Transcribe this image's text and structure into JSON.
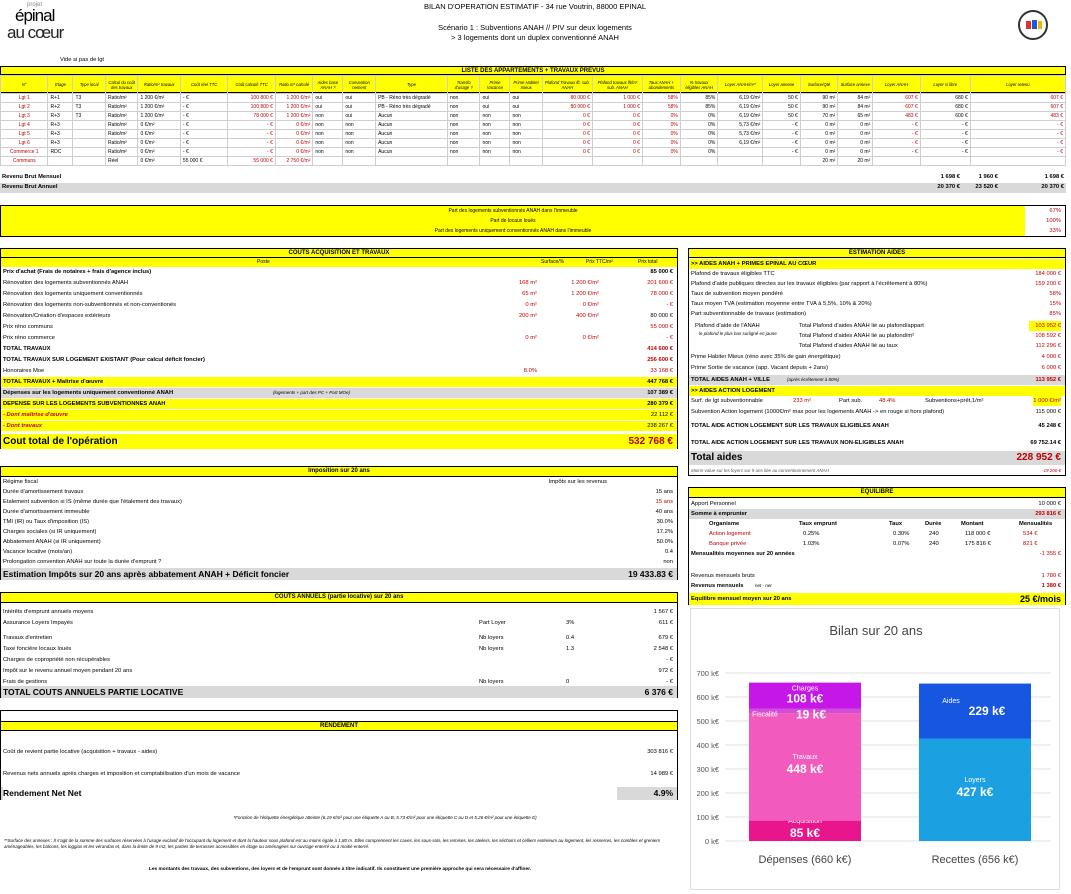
{
  "header": {
    "logo_small": "projet",
    "logo_line1": "épinal",
    "logo_line2": "au cœur",
    "title": "BILAN D'OPERATION ESTIMATIF - 34 rue Voutrin, 88000 EPINAL",
    "scenario": "Scénario 1 : Subventions ANAH // PIV sur deux logements",
    "scenario2": "> 3 logements dont un duplex conventionné ANAH"
  },
  "vide": "Vide si pas de lgt",
  "apt": {
    "title": "LISTE DES APPARTEMENTS + TRAVAUX PREVUS",
    "cols": [
      "N°",
      "Etage",
      "Type local",
      "Calcul du coût des travaux",
      "Ratio/m² travaux",
      "Coût réel TTC",
      "Coût calculé TTC",
      "Ratio m² calculé",
      "Aides base ANAH ?",
      "Convention nement",
      "Type",
      "Transfo d'usage ?",
      "Prime Vacance",
      "Prime Habiter mieux",
      "Plafond Travaux lft. sub. ANAH",
      "Plafond travaux lft/m² sub. ANAH",
      "Taux ANAH + abondements",
      "% travaux éligibles ANAH",
      "Loyer ANAH/m²*",
      "Loyer annexe",
      "Surface/Qté",
      "Surface annexe",
      "Loyer ANAH",
      "Loyer si libre",
      "Loyer retenu"
    ],
    "rows": [
      [
        "Lgt 1",
        "R+1",
        "T3",
        "Ratio/m²",
        "1 200 €/m²",
        "- €",
        "100 800 €",
        "1 200 €/m²",
        "oui",
        "oui",
        "PB - Réno très dégradé",
        "non",
        "oui",
        "oui",
        "80 000 €",
        "1 000 €",
        "58%",
        "85%",
        "6,19 €/m²",
        "50 €",
        "90 m²",
        "84 m²",
        "607 €",
        "680 €",
        "607 €"
      ],
      [
        "Lgt 2",
        "R+2",
        "T3",
        "Ratio/m²",
        "1 200 €/m²",
        "- €",
        "100 800 €",
        "1 200 €/m²",
        "oui",
        "oui",
        "PB - Réno très dégradé",
        "non",
        "oui",
        "oui",
        "80 000 €",
        "1 000 €",
        "58%",
        "85%",
        "6,19 €/m²",
        "50 €",
        "90 m²",
        "84 m²",
        "607 €",
        "680 €",
        "607 €"
      ],
      [
        "Lgt 3",
        "R+3",
        "T3",
        "Ratio/m²",
        "1 200 €/m²",
        "- €",
        "78 000 €",
        "1 200 €/m²",
        "non",
        "oui",
        "Aucun",
        "non",
        "non",
        "non",
        "0 €",
        "0 €",
        "0%",
        "0%",
        "6,19 €/m²",
        "50 €",
        "70 m²",
        "65 m²",
        "483 €",
        "600 €",
        "483 €"
      ],
      [
        "Lgt 4",
        "R+3",
        "",
        "Ratio/m²",
        "0 €/m²",
        "- €",
        "- €",
        "0 €/m²",
        "non",
        "non",
        "Aucun",
        "non",
        "non",
        "non",
        "0 €",
        "0 €",
        "0%",
        "0%",
        "5,73 €/m²",
        "- €",
        "0 m²",
        "0 m²",
        "- €",
        "- €",
        "- €"
      ],
      [
        "Lgt 5",
        "R+3",
        "",
        "Ratio/m²",
        "0 €/m²",
        "- €",
        "- €",
        "0 €/m²",
        "non",
        "non",
        "Aucun",
        "non",
        "non",
        "non",
        "0 €",
        "0 €",
        "0%",
        "0%",
        "5,73 €/m²",
        "- €",
        "0 m²",
        "0 m²",
        "- €",
        "- €",
        "- €"
      ],
      [
        "Lgt 6",
        "R+3",
        "",
        "Ratio/m²",
        "0 €/m²",
        "- €",
        "- €",
        "0 €/m²",
        "non",
        "non",
        "Aucun",
        "non",
        "non",
        "non",
        "0 €",
        "0 €",
        "0%",
        "0%",
        "6,19 €/m²",
        "- €",
        "0 m²",
        "0 m²",
        "- €",
        "- €",
        "- €"
      ],
      [
        "Commerce 1",
        "RDC",
        "",
        "Ratio/m²",
        "0 €/m²",
        "- €",
        "- €",
        "0 €/m²",
        "non",
        "non",
        "Aucun",
        "non",
        "non",
        "non",
        "0 €",
        "0 €",
        "0%",
        "0%",
        "",
        "- €",
        "0 m²",
        "0 m²",
        "- €",
        "- €",
        "- €"
      ],
      [
        "Communs",
        "",
        "",
        "Réel",
        "0 €/m²",
        "55 000 €",
        "55 000 €",
        "2 750 €/m²",
        "",
        "",
        "",
        "",
        "",
        "",
        "",
        "",
        "",
        "",
        "",
        "",
        "20 m²",
        "20 m²",
        "",
        "",
        ""
      ]
    ],
    "rev_mensuel_label": "Revenu Brut Mensuel",
    "rev_mensuel": [
      "1 698 €",
      "1 960 €",
      "1 698 €"
    ],
    "rev_annuel_label": "Revenu Brut Annuel",
    "rev_annuel": [
      "20 370 €",
      "23 520 €",
      "20 370 €"
    ]
  },
  "parts": [
    {
      "label": "Part des logements subventionnés ANAH dans l'immeuble",
      "value": "67%"
    },
    {
      "label": "Part de locaux loués",
      "value": "100%"
    },
    {
      "label": "Part des logements uniquement conventionnés ANAH dans l'immeuble",
      "value": "33%"
    }
  ],
  "couts": {
    "title": "COUTS ACQUISITION ET TRAVAUX",
    "h_poste": "Poste",
    "h_surf": "Surface/%",
    "h_prix_m2": "Prix TTC/m²",
    "h_prix": "Prix total",
    "rows": [
      {
        "l": "Prix d'achat (Frais de notaires + frais d'agence inclus)",
        "s": "",
        "p": "",
        "v": "85 000 €",
        "b": true
      },
      {
        "l": "Rénovation des logements subventionnés ANAH",
        "s": "168 m²",
        "p": "1 200 €/m²",
        "v": "201 600 €",
        "red": true
      },
      {
        "l": "Rénovation des logements uniquement conventionnés",
        "s": "65 m²",
        "p": "1 200 €/m²",
        "v": "78 000 €",
        "red": true
      },
      {
        "l": "Rénovation des logements non-subventionnés et non-conventionés",
        "s": "0 m²",
        "p": "0 €/m²",
        "v": "- €",
        "red": true
      },
      {
        "l": "Rénovation/Création d'espaces extérieurs",
        "s": "200 m²",
        "p": "400 €/m²",
        "v": "80 000 €"
      },
      {
        "l": "Prix réno communs",
        "s": "",
        "p": "",
        "v": "55 000 €",
        "red": true
      },
      {
        "l": "Prix réno commerce",
        "s": "0 m²",
        "p": "0 €/m²",
        "v": "- €",
        "red": true
      },
      {
        "l": "TOTAL TRAVAUX",
        "s": "",
        "p": "",
        "v": "414 600 €",
        "b": true,
        "red": true
      },
      {
        "l": "TOTAL TRAVAUX SUR LOGEMENT EXISTANT (Pour calcul déficit foncier)",
        "s": "",
        "p": "",
        "v": "256 600 €",
        "b": true,
        "red": true
      },
      {
        "l": "Honoraires Moe",
        "s": "8.0%",
        "p": "",
        "v": "33 168 €",
        "red": true
      },
      {
        "l": "TOTAL TRAVAUX + Maîtrise d'œuvre",
        "s": "",
        "p": "",
        "v": "447 768 €",
        "b": true,
        "band": "y"
      },
      {
        "l": "Dépenses sur les logements uniquement conventionné ANAH",
        "note": "(logements + part des PC + Part MOe)",
        "s": "",
        "p": "",
        "v": "107 389 €",
        "b": true,
        "band": "g"
      },
      {
        "l": "DEPENSE SUR LES LOGEMENTS SUBVENTIONNES ANAH",
        "s": "",
        "p": "",
        "v": "280 379 €",
        "b": true,
        "band": "y"
      },
      {
        "l": "- Dont maîtrise d'œuvre",
        "s": "",
        "p": "",
        "v": "22 112 €",
        "i": true,
        "band": "y"
      },
      {
        "l": "- Dont travaux",
        "s": "",
        "p": "",
        "v": "238 267 €",
        "i": true,
        "band": "y"
      }
    ],
    "total_label": "Cout total de l'opération",
    "total_value": "532 768 €"
  },
  "aides": {
    "title": "ESTIMATION AIDES",
    "anah_head": ">> AIDES ANAH + PRIMES EPINAL AU CŒUR",
    "rows": [
      {
        "l": "Plafond de travaux éligibles TTC",
        "v": "184 000 €"
      },
      {
        "l": "Plafond d'aide publiques directes sur les travaux éligibles (par rapport à l'écrêtement à 80%)",
        "v": "159 200 €"
      },
      {
        "l": "Taux de subvention moyen pondéré",
        "v": "58%"
      },
      {
        "l": "Taux moyen TVA (estimation moyenne entre TVA à 5,5%, 10% & 20%)",
        "v": "15%"
      },
      {
        "l": "Part subventionnable de travaux (estimation)",
        "v": "85%"
      }
    ],
    "plafond_label": "Plafond d'aide de l'ANAH",
    "plafond_sub": "le plafond le plus bas surligné en jaune",
    "plafonds": [
      {
        "l": "Total Plafond d'aides ANAH lié au plafond/appart",
        "v": "103 952 €"
      },
      {
        "l": "Total Plafond d'aides ANAH lié au plafond/m²",
        "v": "108 592 €"
      },
      {
        "l": "Total Plafond d'aides ANAH lié au taux",
        "v": "112 296 €"
      }
    ],
    "rows2": [
      {
        "l": "Prime Habiter Mieux (réno avec 35% de gain énergétique)",
        "v": "4 000 €"
      },
      {
        "l": "Prime Sortie de vacance (app. Vacant depuis + 2ans)",
        "v": "6 000 €"
      }
    ],
    "total_anah_label": "TOTAL AIDES ANAH + VILLE",
    "total_anah_note": "(après écrêtement à 80%)",
    "total_anah": "113 952 €",
    "al_head": ">> AIDES ACTION LOGEMENT",
    "al_surf_label": "Surf. de lgt subventionnable",
    "al_surf": "233 m²",
    "al_part_label": "Part sub.",
    "al_part": "48.4%",
    "al_sub_label": "Subventions+prêt,1/m²",
    "al_sub": "1 000 €/m²",
    "al_row": "Subvention Action logement (1000€/m² max pour les logements ANAH -> en rouge si hors plafond)",
    "al_row_v": "115 000 €",
    "al_total_label": "TOTAL AIDE ACTION LOGEMENT SUR LES TRAVAUX ELIGIBLES ANAH",
    "al_total": "45 248 €",
    "al_total2_label": "TOTAL AIDE ACTION LOGEMENT SUR LES TRAVAUX NON-ELIGIBLES ANAH",
    "al_total2": "69 752.14 €",
    "total_label": "Total aides",
    "total": "228 952 €",
    "moins_value": "Moins-value sur les loyers sur 9 ans liée au conventionnement ANAH",
    "moins_value_v": "-19 200 €"
  },
  "impot": {
    "title": "Imposition sur 20 ans",
    "head_r": "Impôts sur les revenus",
    "rows": [
      {
        "l": "Régime fiscal",
        "v": ""
      },
      {
        "l": "Durée d'amortissement travaux",
        "v": "15 ans"
      },
      {
        "l": "Etalement subvention si IS (même durée que l'étalement des travaux)",
        "v": "15 ans",
        "red": true
      },
      {
        "l": "Durée d'amortissement immeuble",
        "v": "40 ans"
      },
      {
        "l": "TMI (IR) ou Taux d'imposition (IS)",
        "v": "30.0%"
      },
      {
        "l": "Charges sociales (si IR uniquement)",
        "v": "17.2%"
      },
      {
        "l": "Abbatement ANAH (si IR uniquement)",
        "v": "50.0%"
      },
      {
        "l": "Vacance locative (mois/an)",
        "v": "0.4"
      },
      {
        "l": "Prolongation convention ANAH sur toute la durée d'emprunt ?",
        "v": "non"
      }
    ],
    "total_label": "Estimation Impôts sur 20 ans après abbatement ANAH + Déficit foncier",
    "total": "19 433.83 €"
  },
  "equi": {
    "title": "EQUILIBRE",
    "apport_label": "Apport Personnel",
    "apport": "10 000 €",
    "emprunt_label": "Somme à emprunter",
    "emprunt": "293 816 €",
    "cols": [
      "Organisme",
      "Taux emprunt",
      "Taux",
      "Durée",
      "Montant",
      "Mensualités"
    ],
    "rows": [
      [
        "Action logement",
        "0.25%",
        "0.30%",
        "240",
        "118 000 €",
        "534 €"
      ],
      [
        "Banque privée",
        "1.03%",
        "0.07%",
        "240",
        "175 816 €",
        "821 €"
      ]
    ],
    "mens_label": "Mensualités moyennes sur 20 années",
    "mens": "-1 355 €",
    "rev_bruts_label": "Revenus mensuels bruts",
    "rev_bruts": "1 780 €",
    "rev_nets_label": "Revenus mensuels",
    "rev_nets_note": "net - net",
    "rev_nets": "1 380 €",
    "eq_label": "Equilibre mensuel moyen sur 20 ans",
    "eq": "25 €/mois"
  },
  "annuels": {
    "title": "COUTS ANNUELS (partie locative) sur 20 ans",
    "rows": [
      {
        "l": "Intérêts d'emprunt annuels moyens",
        "m": "",
        "n": "",
        "v": "1 567 €"
      },
      {
        "l": "Assurance Loyers Impayés",
        "m": "Part Loyer",
        "n": "3%",
        "v": "611 €"
      },
      {
        "l": "Travaux d'entretien",
        "m": "Nb loyers",
        "n": "0.4",
        "v": "679 €"
      },
      {
        "l": "Taxe foncière locaux loués",
        "m": "Nb loyers",
        "n": "1.3",
        "v": "2 548 €"
      },
      {
        "l": "Charges de copropriété non récupérables",
        "m": "",
        "n": "",
        "v": "- €"
      },
      {
        "l": "Impôt sur le revenu annuel moyen pendant 20 ans",
        "m": "",
        "n": "",
        "v": "972 €"
      },
      {
        "l": "Frais de gestions",
        "m": "Nb loyers",
        "n": "0",
        "v": "- €"
      }
    ],
    "total_label": "TOTAL COUTS ANNUELS PARTIE LOCATIVE",
    "total": "6 376 €"
  },
  "rendement": {
    "title": "RENDEMENT",
    "r1_label": "Coût de revient partie locative (acquisition + travaux - aides)",
    "r1": "303 816 €",
    "r2_label": "Revenus nets annuels après charges et imposition et comptabilisation d'un mois de vacance",
    "r2": "14 989 €",
    "r3_label": "Rendement Net Net",
    "r3": "4.9%"
  },
  "notes": {
    "n1": "*Fonction de l'étiquette énergétique atteinte (6.19 €/m² pour une étiquette A ou B, 5.73 €/m² pour une étiquette C ou D et 5.26 €/m² pour une étiquette E)",
    "n2": "**Surface des annexes : Il s'agit de la somme des surfaces réservées à l'usage exclusif de l'occupant du logement et dont la hauteur sous plafond est au moins égale à 1,80 m. Elles comprennent les caves, les sous-sols, les remises, les ateliers, les séchoirs et celliers extérieurs au logement, les resserres, les combles et greniers aménageables, les balcons, les loggias et les vérandas et, dans la limite de 9 m2, les parties de terrasses accessibles en étage ou aménagées sur ouvrage enterré ou à moitié enterré.",
    "n3": "Les montants des travaux, des subventions, des loyers et de l'emprunt sont donnés à titre indicatif. Ils constituent une première approche qui sera nécessaire d'affiner."
  },
  "chart_data": {
    "type": "bar",
    "title": "Bilan sur 20 ans",
    "categories": [
      "Dépenses (660 k€)",
      "Recettes (656 k€)"
    ],
    "ylim": [
      0,
      700
    ],
    "yticks": [
      "0 k€",
      "100 k€",
      "200 k€",
      "300 k€",
      "400 k€",
      "500 k€",
      "600 k€",
      "700 k€"
    ],
    "stacks": [
      [
        {
          "name": "Acquisition",
          "value": 85,
          "label": "85 k€",
          "color": "#e8158c"
        },
        {
          "name": "Travaux",
          "value": 448,
          "label": "448 k€",
          "color": "#f25bbd"
        },
        {
          "name": "Fiscalité",
          "value": 19,
          "label": "19 k€",
          "color": "#d24dd8"
        },
        {
          "name": "Charges",
          "value": 108,
          "label": "108 k€",
          "color": "#c517e8"
        }
      ],
      [
        {
          "name": "Loyers",
          "value": 427,
          "label": "427 k€",
          "color": "#1ba1e2"
        },
        {
          "name": "Aides",
          "value": 229,
          "label": "229 k€",
          "color": "#1656e0"
        }
      ]
    ]
  }
}
